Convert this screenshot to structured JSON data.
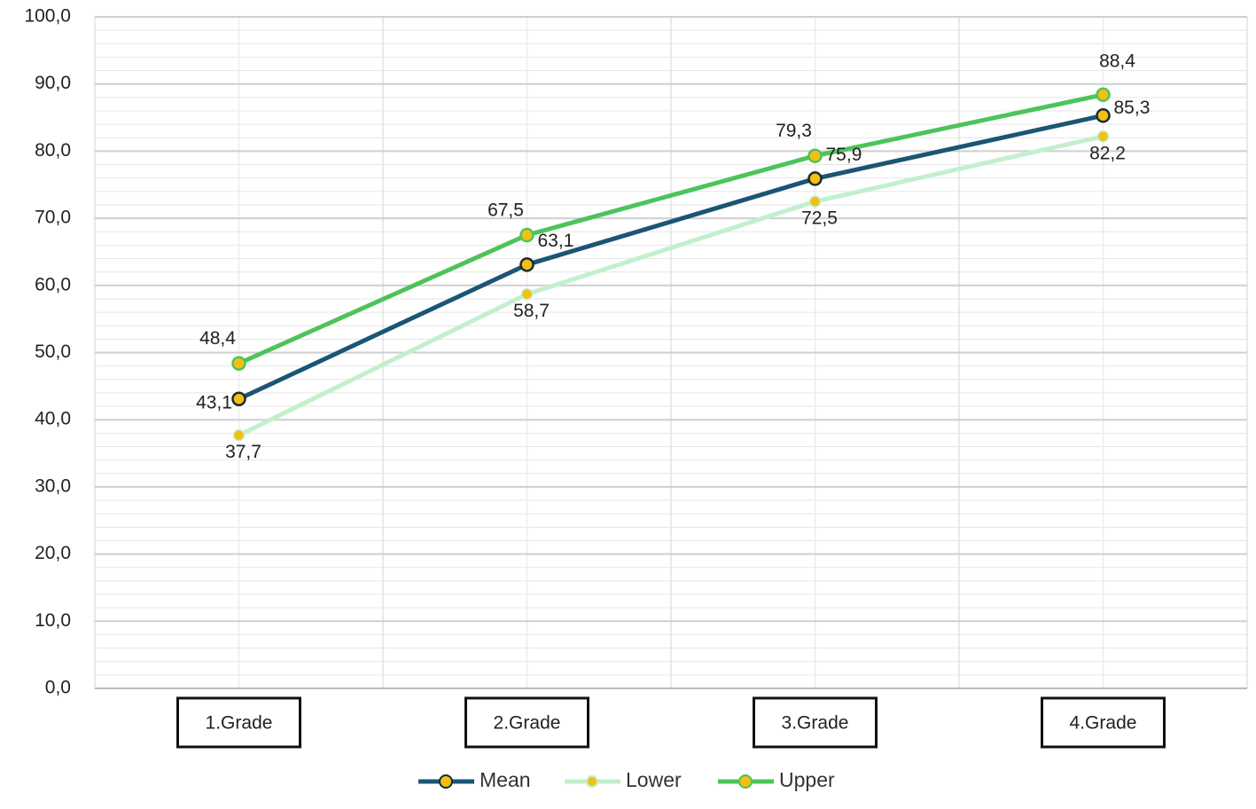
{
  "chart_data": {
    "type": "line",
    "categories": [
      "1.Grade",
      "2.Grade",
      "3.Grade",
      "4.Grade"
    ],
    "series": [
      {
        "name": "Mean",
        "color": "#1b5575",
        "marker_color": "#f2c014",
        "values": [
          43.1,
          63.1,
          75.9,
          85.3
        ],
        "value_labels": [
          "43,1",
          "63,1",
          "75,9",
          "85,3"
        ]
      },
      {
        "name": "Lower",
        "color": "#c4efcc",
        "marker_color": "#f2c014",
        "values": [
          37.7,
          58.7,
          72.5,
          82.2
        ],
        "value_labels": [
          "37,7",
          "58,7",
          "72,5",
          "82,2"
        ]
      },
      {
        "name": "Upper",
        "color": "#4cc45a",
        "marker_color": "#f2c014",
        "values": [
          48.4,
          67.5,
          79.3,
          88.4
        ],
        "value_labels": [
          "48,4",
          "67,5",
          "79,3",
          "88,4"
        ]
      }
    ],
    "ylim": [
      0,
      100
    ],
    "yticks": [
      {
        "value": 0,
        "label": "0,0"
      },
      {
        "value": 10,
        "label": "10,0"
      },
      {
        "value": 20,
        "label": "20,0"
      },
      {
        "value": 30,
        "label": "30,0"
      },
      {
        "value": 40,
        "label": "40,0"
      },
      {
        "value": 50,
        "label": "50,0"
      },
      {
        "value": 60,
        "label": "60,0"
      },
      {
        "value": 70,
        "label": "70,0"
      },
      {
        "value": 80,
        "label": "80,0"
      },
      {
        "value": 90,
        "label": "90,0"
      },
      {
        "value": 100,
        "label": "100,0"
      }
    ],
    "grid": true,
    "legend": "bottom"
  }
}
